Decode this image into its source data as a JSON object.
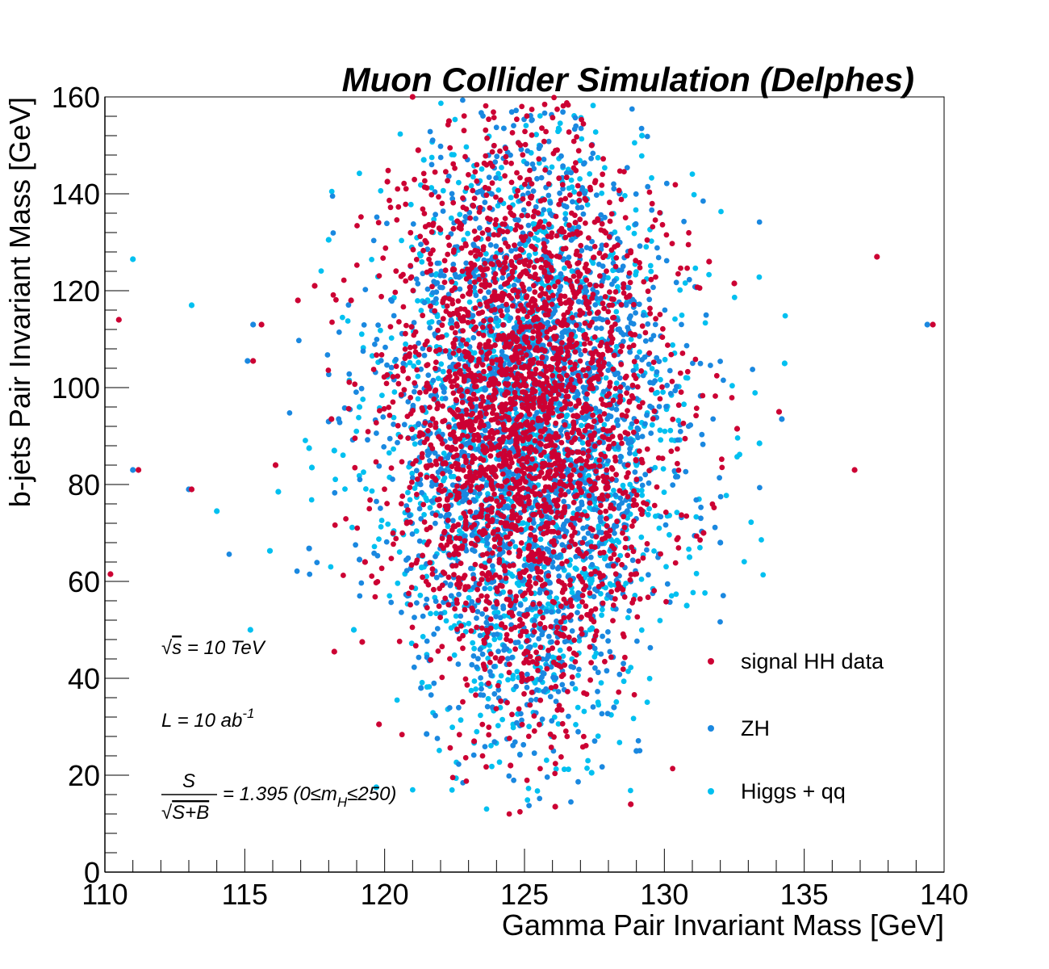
{
  "chart_data": {
    "type": "scatter",
    "title": "Muon Collider Simulation (Delphes)",
    "xlabel": "Gamma Pair Invariant Mass [GeV]",
    "ylabel": "b-jets Pair Invariant Mass [GeV]",
    "xlim": [
      110,
      140
    ],
    "ylim": [
      0,
      160
    ],
    "xticks": [
      110,
      115,
      120,
      125,
      130,
      135,
      140
    ],
    "yticks": [
      0,
      20,
      40,
      60,
      80,
      100,
      120,
      140,
      160
    ],
    "grid": false,
    "legend_position": "bottom-right",
    "series": [
      {
        "name": "signal HH data",
        "color": "#cc0033",
        "distribution": {
          "mean_x": 125.0,
          "mean_y": 95,
          "std_x": 2.4,
          "std_y": 28
        },
        "points": [
          [
            110.2,
            61.5
          ],
          [
            110.5,
            114
          ],
          [
            111.2,
            83
          ],
          [
            113.1,
            79
          ],
          [
            115.3,
            105.5
          ],
          [
            115.6,
            113
          ],
          [
            116.1,
            84
          ],
          [
            116.9,
            118
          ],
          [
            117.5,
            121
          ],
          [
            118.1,
            93.5
          ],
          [
            118.2,
            45.5
          ],
          [
            118.8,
            118
          ],
          [
            119.2,
            47.5
          ],
          [
            119.3,
            64
          ],
          [
            119.8,
            30.5
          ],
          [
            120.1,
            142.5
          ],
          [
            121.0,
            160
          ],
          [
            121.2,
            149
          ],
          [
            126.1,
            13.5
          ],
          [
            128.8,
            14
          ],
          [
            131.4,
            70
          ],
          [
            131.6,
            126
          ],
          [
            132.5,
            121.5
          ],
          [
            132.6,
            91.5
          ],
          [
            134.1,
            95
          ],
          [
            136.8,
            83
          ],
          [
            137.6,
            127
          ],
          [
            139.6,
            113
          ],
          [
            122.3,
            155
          ],
          [
            127.4,
            150
          ],
          [
            124.5,
            22
          ],
          [
            123.2,
            27
          ]
        ]
      },
      {
        "name": "ZH",
        "color": "#1a88e0",
        "distribution": {
          "mean_x": 125.2,
          "mean_y": 92,
          "std_x": 2.6,
          "std_y": 30
        },
        "points": [
          [
            111.0,
            83
          ],
          [
            113.0,
            79
          ],
          [
            115.1,
            105.5
          ],
          [
            115.3,
            113
          ],
          [
            117.3,
            66.8
          ],
          [
            118.0,
            93
          ],
          [
            119.1,
            64.5
          ],
          [
            121.5,
            28.5
          ],
          [
            129.0,
            25
          ],
          [
            132.0,
            68
          ],
          [
            134.2,
            93.5
          ],
          [
            139.4,
            113
          ],
          [
            121.3,
            38
          ],
          [
            128.2,
            34
          ]
        ]
      },
      {
        "name": "Higgs + qq",
        "color": "#00c0f0",
        "distribution": {
          "mean_x": 125.3,
          "mean_y": 90,
          "std_x": 2.8,
          "std_y": 32
        },
        "points": [
          [
            111.0,
            126.5
          ],
          [
            113.1,
            117
          ],
          [
            114.0,
            74.5
          ],
          [
            115.2,
            50
          ],
          [
            115.9,
            66.3
          ],
          [
            116.2,
            78.5
          ],
          [
            117.3,
            87.5
          ],
          [
            117.4,
            83.5
          ],
          [
            118.0,
            130.5
          ],
          [
            118.2,
            87
          ],
          [
            118.9,
            50
          ],
          [
            119.1,
            96
          ],
          [
            119.7,
            17.5
          ],
          [
            130.8,
            55
          ],
          [
            130.9,
            65
          ],
          [
            133.4,
            88.5
          ],
          [
            134.3,
            105
          ],
          [
            121.4,
            147
          ],
          [
            129.2,
            152
          ],
          [
            127.4,
            20.5
          ]
        ]
      }
    ],
    "annotations": {
      "sqrt_s": "√s = 10 TeV",
      "lumi": "L = 10 ab-1",
      "significance": "S/√(S+B) = 1.395 (0≤mH≤250)"
    }
  },
  "labels": {
    "sqrt_symbol": "√",
    "s": "s",
    "eq_tev": " =  10 TeV",
    "l": "L  =  10 ab",
    "lumi_exp": "-1",
    "frac_num": "S",
    "frac_den": "S+B",
    "signif_val": " =  1.395  (0≤m",
    "signif_sub": "H",
    "signif_end": "≤250)"
  }
}
